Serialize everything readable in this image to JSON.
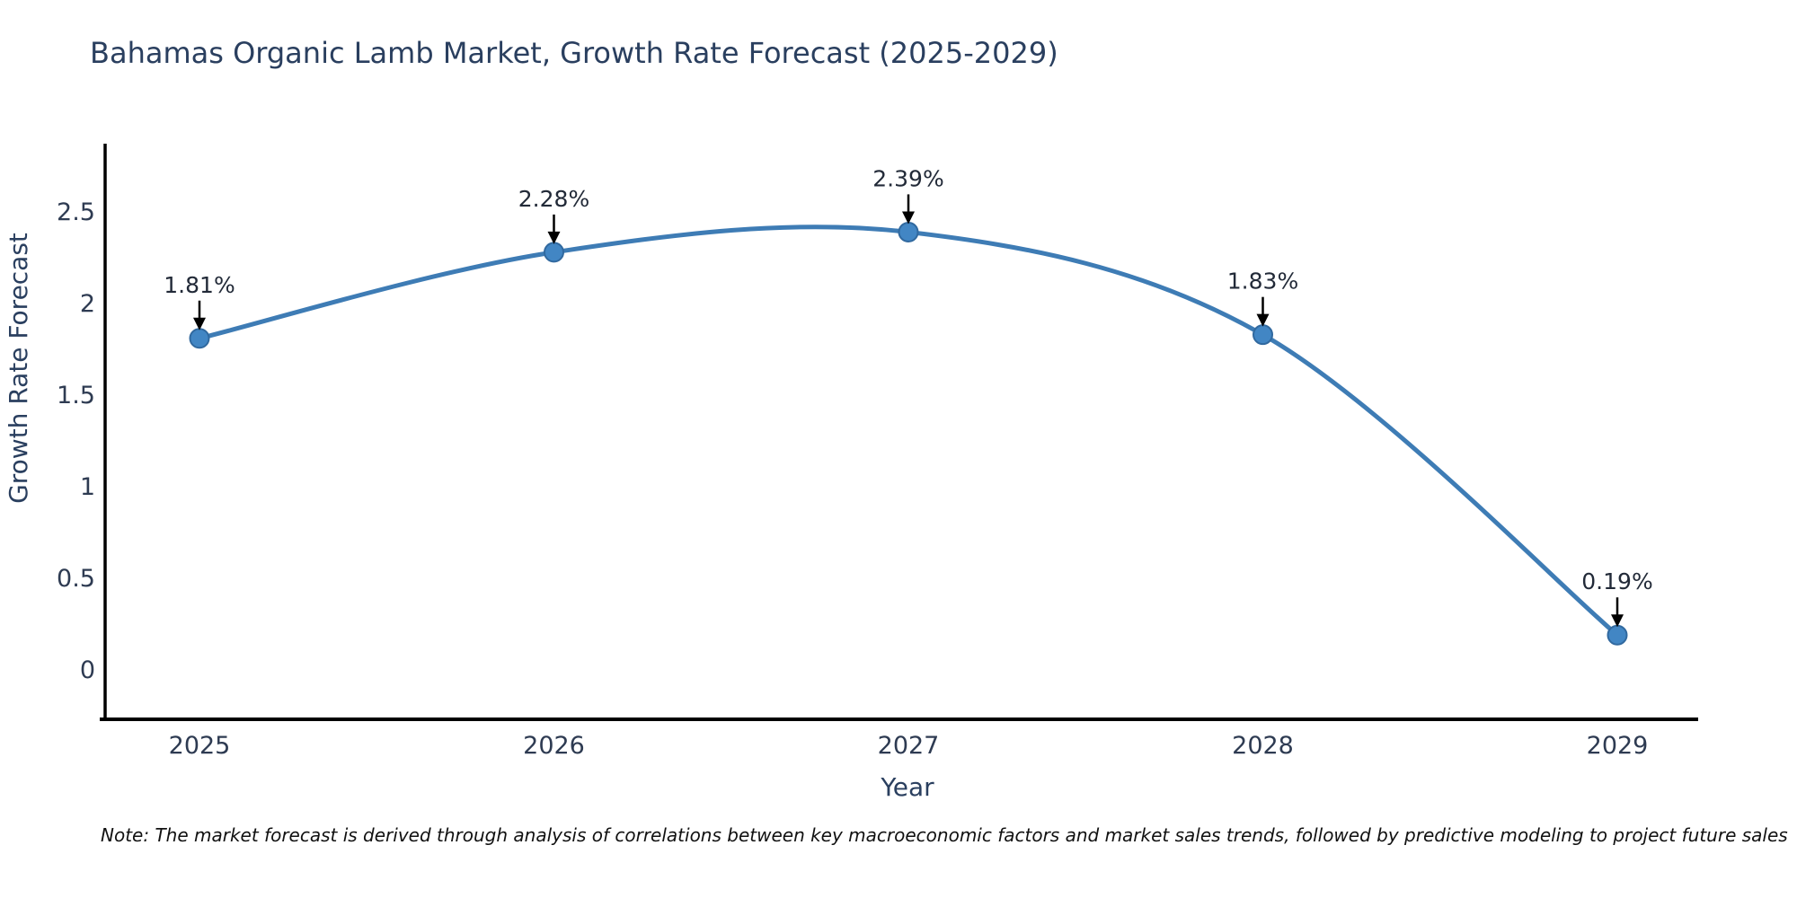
{
  "chart_data": {
    "type": "line",
    "title": "Bahamas Organic Lamb Market, Growth Rate Forecast (2025-2029)",
    "xlabel": "Year",
    "ylabel": "Growth Rate Forecast",
    "x": [
      2025,
      2026,
      2027,
      2028,
      2029
    ],
    "series": [
      {
        "name": "Growth Rate Forecast",
        "values": [
          1.81,
          2.28,
          2.39,
          1.83,
          0.19
        ]
      }
    ],
    "point_labels": [
      "1.81%",
      "2.28%",
      "2.39%",
      "1.83%",
      "0.19%"
    ],
    "yticks": [
      0,
      0.5,
      1,
      1.5,
      2,
      2.5
    ],
    "xticks": [
      "2025",
      "2026",
      "2027",
      "2028",
      "2029"
    ],
    "ylim": [
      -0.27,
      2.87
    ],
    "xlim": [
      2024.72,
      2029.23
    ],
    "grid": false,
    "legend": "none",
    "line_shape": "spline",
    "line_color": "#3e7cb5",
    "marker_color": "#4286c4",
    "marker_edge_color": "#31699f",
    "axis_color": "#000000",
    "tick_label_color": "#2e3b52",
    "annotation_text_color": "#222a38",
    "annotation_arrow_color": "#000000",
    "title_color": "#2a3f5f"
  },
  "note": "Note: The market forecast is derived through analysis of correlations between key macroeconomic factors and market sales trends, followed by predictive modeling to project future sales"
}
